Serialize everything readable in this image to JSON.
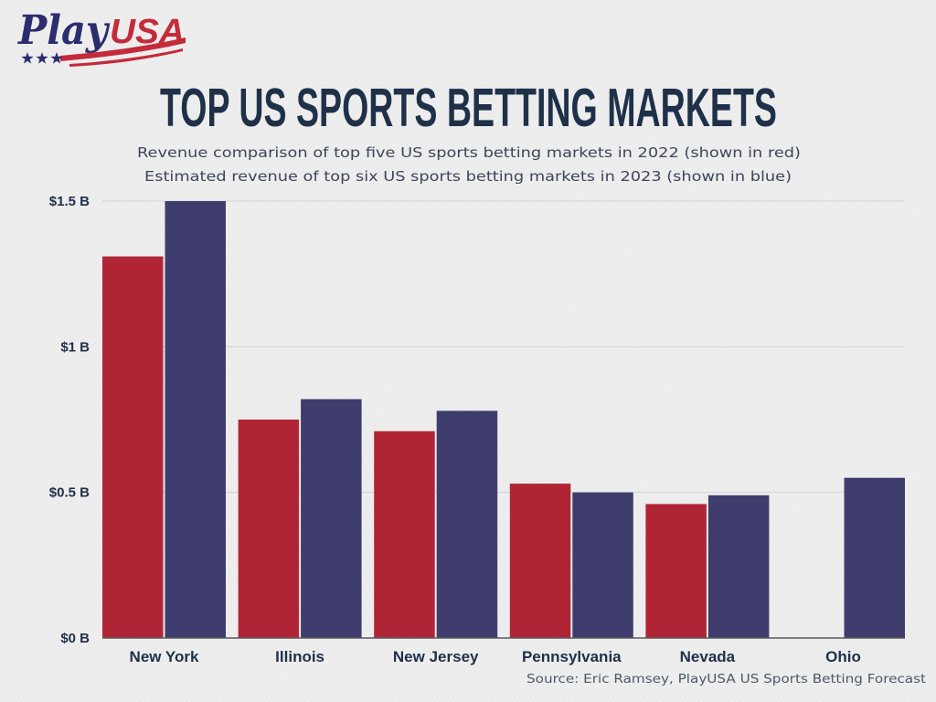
{
  "logo": {
    "part1": "Play",
    "part2": "USA",
    "colors": {
      "play": "#2b2d6e",
      "usa": "#c42b3a",
      "stars": "#2b2d6e",
      "stripes": "#c42b3a"
    }
  },
  "chart_data": {
    "type": "bar",
    "title": "TOP US SPORTS BETTING MARKETS",
    "subtitle": [
      "Revenue comparison of top five US sports betting markets in 2022 (shown in red)",
      "Estimated revenue of top six US sports betting markets in 2023 (shown in blue)"
    ],
    "categories": [
      "New York",
      "Illinois",
      "New Jersey",
      "Pennsylvania",
      "Nevada",
      "Ohio"
    ],
    "series": [
      {
        "color": "#b02536",
        "values": [
          1.31,
          0.75,
          0.71,
          0.53,
          0.46,
          null
        ]
      },
      {
        "color": "#3f3d6d",
        "values": [
          1.5,
          0.82,
          0.78,
          0.5,
          0.49,
          0.55
        ]
      }
    ],
    "yticks": [
      {
        "value": 0,
        "label": "$0 B"
      },
      {
        "value": 0.5,
        "label": "$0.5 B"
      },
      {
        "value": 1,
        "label": "$1 B"
      },
      {
        "value": 1.5,
        "label": "$1.5 B"
      }
    ],
    "ylim": [
      0,
      1.5
    ],
    "xlabel": "",
    "ylabel": "",
    "grid": true,
    "legend": "none",
    "source": "Source: Eric Ramsey, PlayUSA US Sports Betting Forecast"
  }
}
